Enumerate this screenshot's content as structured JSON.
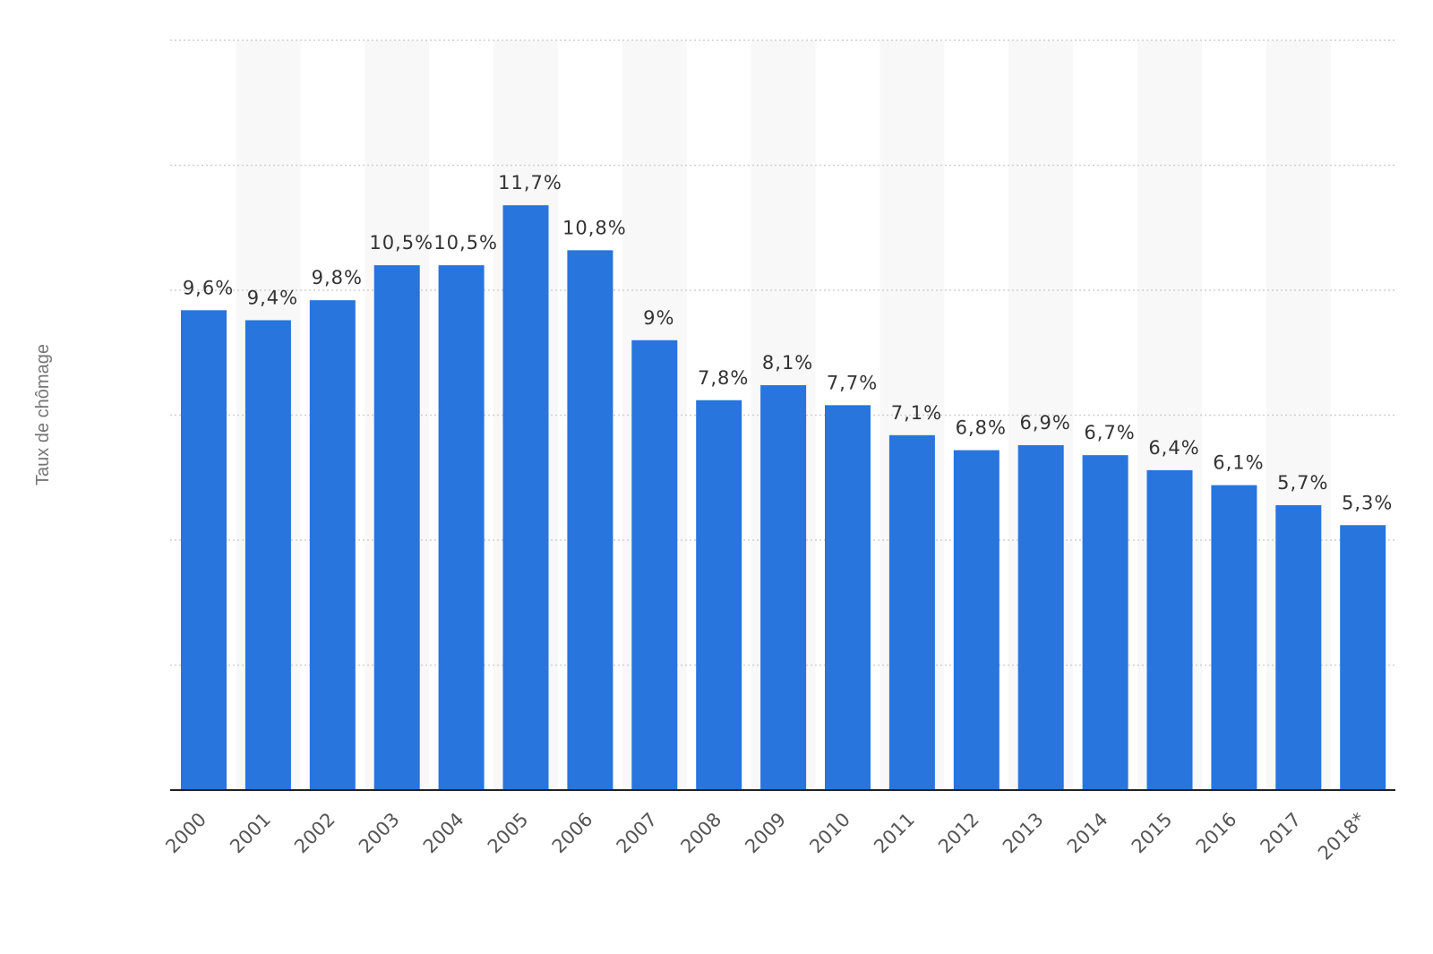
{
  "chart_data": {
    "type": "bar",
    "ylabel": "Taux de chômage",
    "xlabel": "",
    "categories": [
      "2000",
      "2001",
      "2002",
      "2003",
      "2004",
      "2005",
      "2006",
      "2007",
      "2008",
      "2009",
      "2010",
      "2011",
      "2012",
      "2013",
      "2014",
      "2015",
      "2016",
      "2017",
      "2018*"
    ],
    "values": [
      9.6,
      9.4,
      9.8,
      10.5,
      10.5,
      11.7,
      10.8,
      9,
      7.8,
      8.1,
      7.7,
      7.1,
      6.8,
      6.9,
      6.7,
      6.4,
      6.1,
      5.7,
      5.3
    ],
    "value_labels": [
      "9,6%",
      "9,4%",
      "9,8%",
      "10,5%",
      "10,5%",
      "11,7%",
      "10,8%",
      "9%",
      "7,8%",
      "8,1%",
      "7,7%",
      "7,1%",
      "6,8%",
      "6,9%",
      "6,7%",
      "6,4%",
      "6,1%",
      "5,7%",
      "5,3%"
    ],
    "ylim": [
      0,
      15
    ],
    "grid": true,
    "colors": {
      "bar": "#2775dd",
      "grid": "#cfcfcf",
      "band": "#f8f8f8",
      "axis": "#222222"
    }
  }
}
